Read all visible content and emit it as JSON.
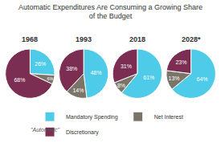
{
  "chart_data": {
    "type": "pie",
    "title": "Automatic Expenditures Are Consuming a Growing Share\nof the Budget",
    "categories": [
      "Mandatory Spending",
      "Net Interest",
      "Discretionary"
    ],
    "colors": [
      "#4dcbe8",
      "#7a7568",
      "#7b2d52"
    ],
    "series": [
      {
        "name": "1968",
        "values": [
          26,
          6,
          68
        ],
        "value_labels": [
          "26%",
          "6%",
          "68%"
        ]
      },
      {
        "name": "1993",
        "values": [
          48,
          14,
          38
        ],
        "value_labels": [
          "48%",
          "14%",
          "38%"
        ]
      },
      {
        "name": "2018",
        "values": [
          61,
          8,
          31
        ],
        "value_labels": [
          "61%",
          "8%",
          "31%"
        ]
      },
      {
        "name": "2028*",
        "values": [
          64,
          13,
          23
        ],
        "value_labels": [
          "64%",
          "13%",
          "23%"
        ]
      }
    ],
    "data_labels": true,
    "legend": "bottom",
    "annotations": [
      {
        "text": "\"Automatic\""
      }
    ]
  }
}
